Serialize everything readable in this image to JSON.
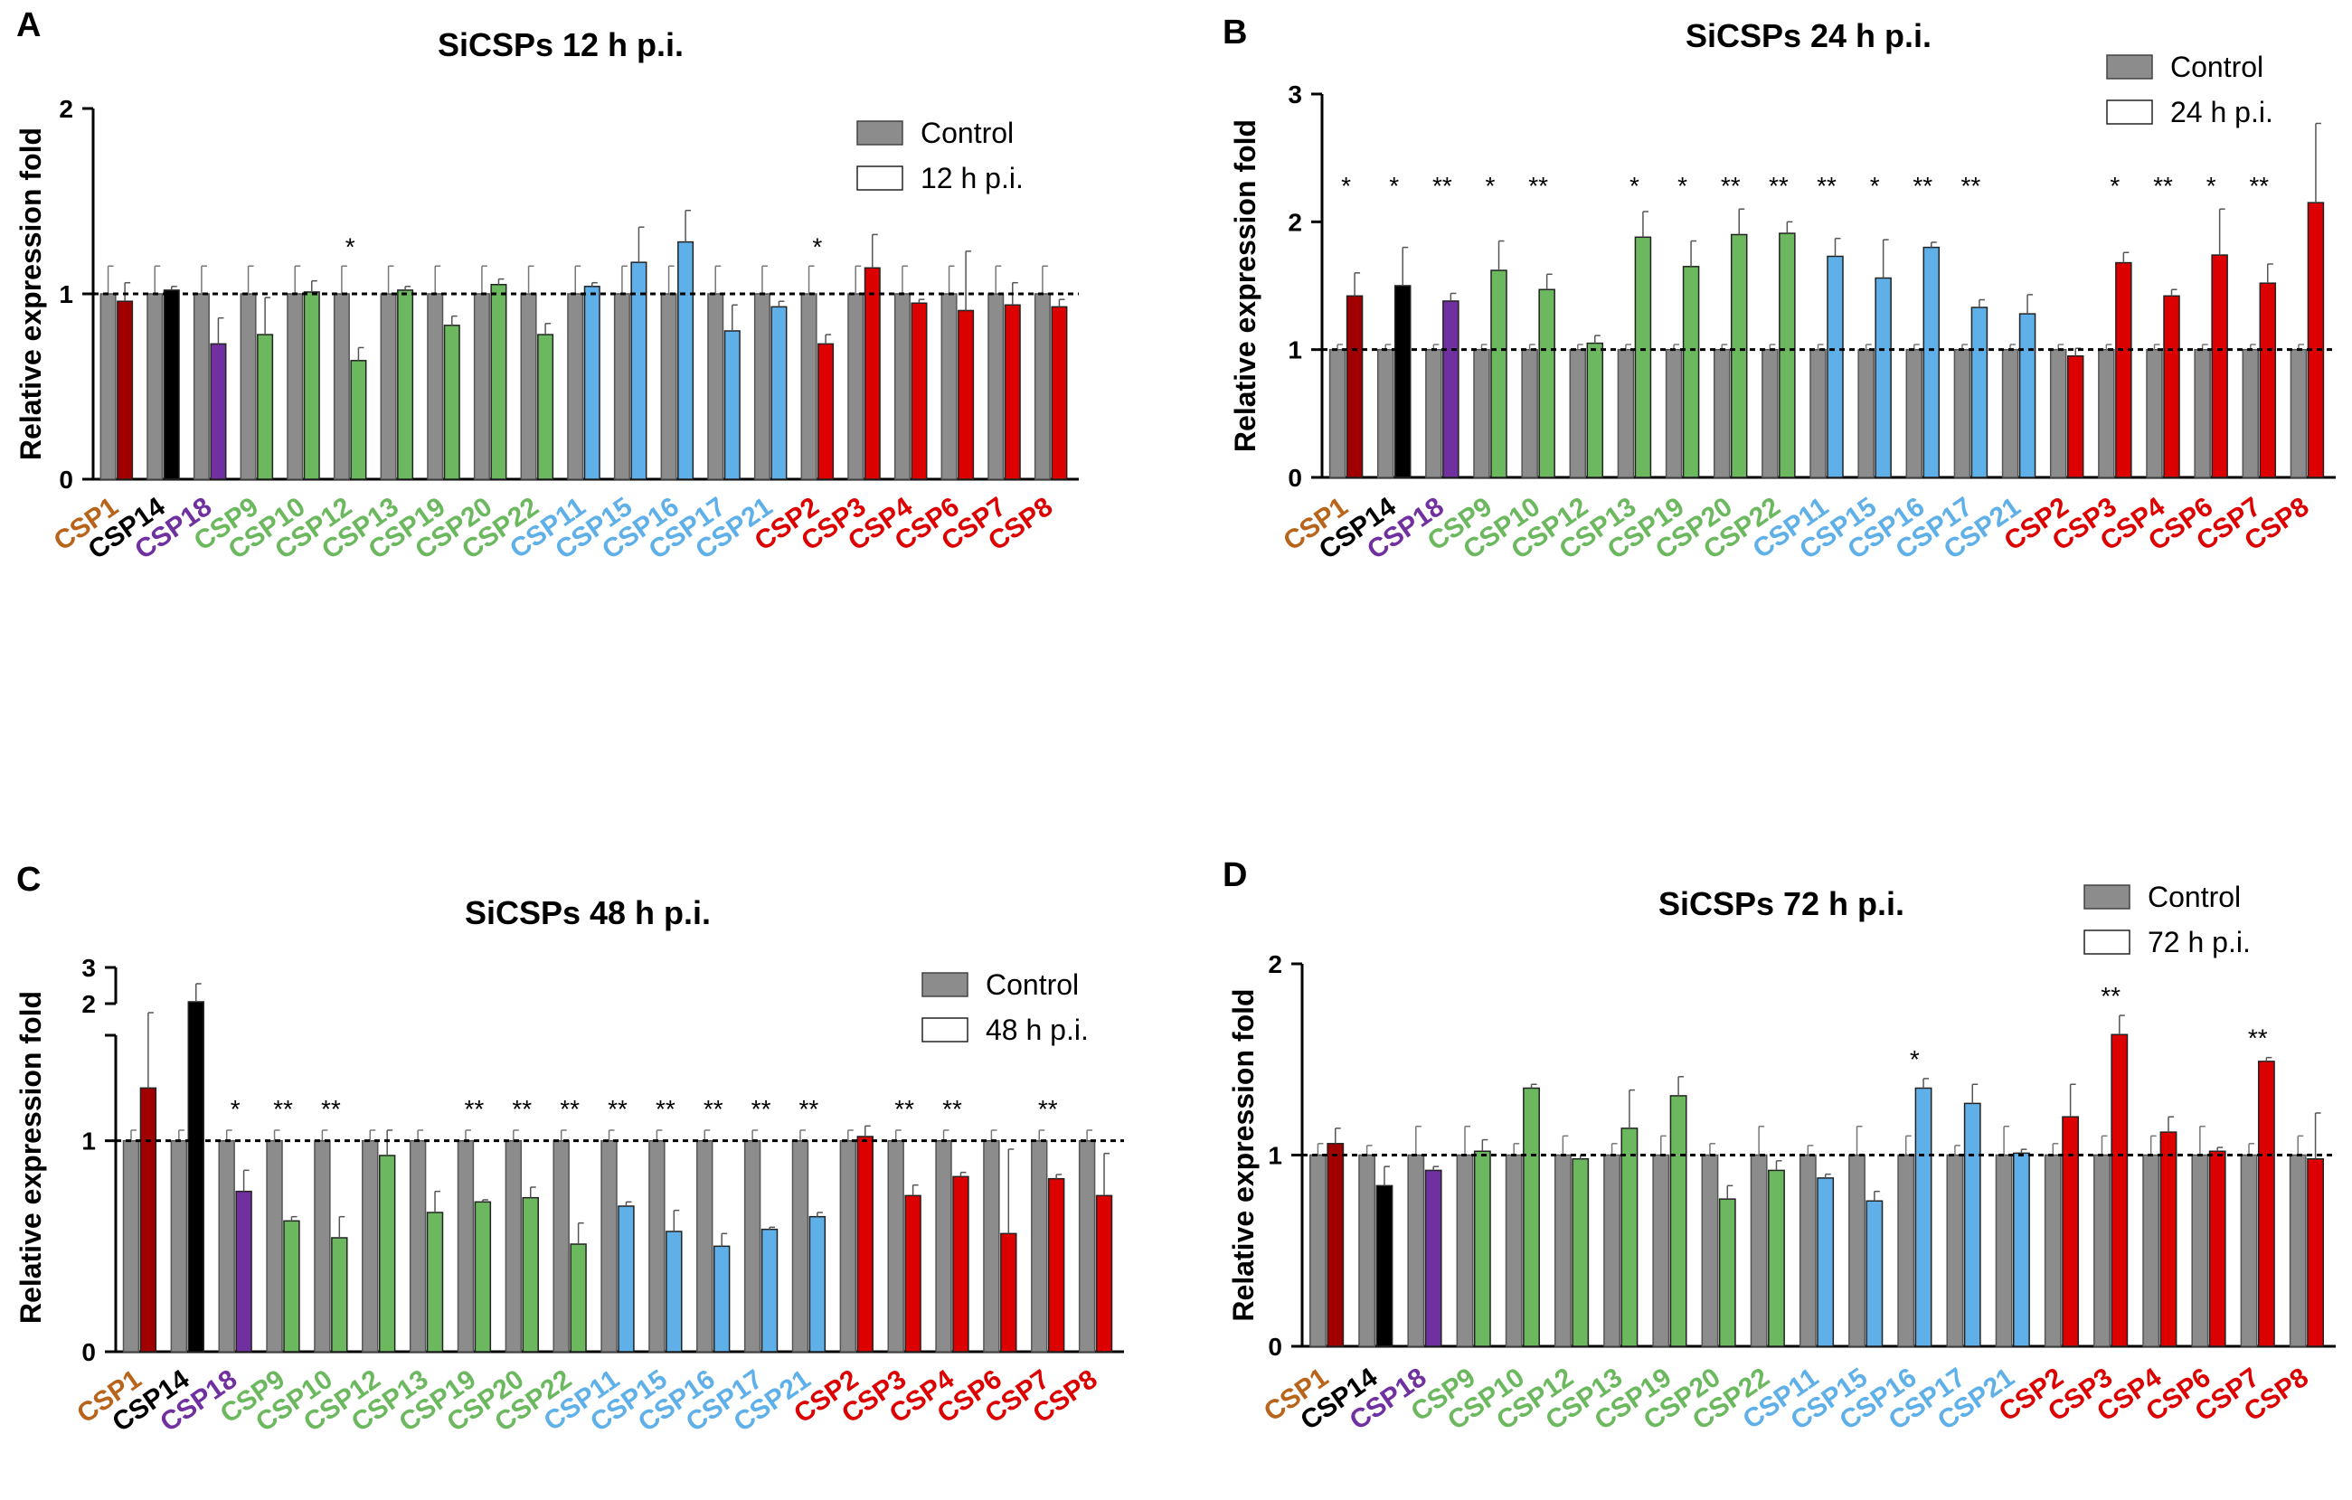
{
  "colors": {
    "control": "#8c8c8c",
    "orange": "#b8651b",
    "darkred": "#a00000",
    "black": "#000000",
    "purple": "#7030a0",
    "green": "#6cb85f",
    "blue": "#5fb0e8",
    "red": "#dd0000",
    "treated_empty": "#ffffff"
  },
  "chart_data": [
    {
      "panel": "A",
      "type": "bar",
      "title": "SiCSPs 12 h p.i.",
      "ylabel": "Relative expression fold",
      "ylim": [
        0,
        2
      ],
      "yticks": [
        "0",
        "1",
        "2"
      ],
      "reference_line": 1,
      "legend": [
        "Control",
        "12 h p.i."
      ],
      "legend_position": "top-right",
      "categories": [
        "CSP1",
        "CSP14",
        "CSP18",
        "CSP9",
        "CSP10",
        "CSP12",
        "CSP13",
        "CSP19",
        "CSP20",
        "CSP22",
        "CSP11",
        "CSP15",
        "CSP16",
        "CSP17",
        "CSP21",
        "CSP2",
        "CSP3",
        "CSP4",
        "CSP6",
        "CSP7",
        "CSP8"
      ],
      "category_colors": [
        "orange",
        "black",
        "purple",
        "green",
        "green",
        "green",
        "green",
        "green",
        "green",
        "green",
        "blue",
        "blue",
        "blue",
        "blue",
        "blue",
        "red",
        "red",
        "red",
        "red",
        "red",
        "red"
      ],
      "treated_colors": [
        "darkred",
        "black",
        "purple",
        "green",
        "green",
        "green",
        "green",
        "green",
        "green",
        "green",
        "blue",
        "blue",
        "blue",
        "blue",
        "blue",
        "red",
        "red",
        "red",
        "red",
        "red",
        "red"
      ],
      "treated_filled": [
        true,
        true,
        true,
        true,
        true,
        true,
        true,
        true,
        true,
        true,
        true,
        true,
        true,
        true,
        true,
        true,
        true,
        true,
        true,
        true,
        true
      ],
      "series": [
        {
          "name": "Control",
          "values": [
            1,
            1,
            1,
            1,
            1,
            1,
            1,
            1,
            1,
            1,
            1,
            1,
            1,
            1,
            1,
            1,
            1,
            1,
            1,
            1,
            1
          ],
          "errors": [
            0.15,
            0.15,
            0.15,
            0.15,
            0.15,
            0.15,
            0.15,
            0.15,
            0.15,
            0.15,
            0.15,
            0.15,
            0.15,
            0.15,
            0.15,
            0.15,
            0.15,
            0.15,
            0.15,
            0.15,
            0.15
          ]
        },
        {
          "name": "12 h p.i.",
          "values": [
            0.96,
            1.02,
            0.73,
            0.78,
            1.01,
            0.64,
            1.02,
            0.83,
            1.05,
            0.78,
            1.04,
            1.17,
            1.28,
            0.8,
            0.93,
            0.73,
            1.14,
            0.95,
            0.91,
            0.94,
            0.93
          ],
          "errors": [
            0.1,
            0.02,
            0.14,
            0.2,
            0.06,
            0.07,
            0.02,
            0.05,
            0.03,
            0.06,
            0.02,
            0.19,
            0.17,
            0.14,
            0.03,
            0.05,
            0.18,
            0.02,
            0.32,
            0.12,
            0.04
          ]
        }
      ],
      "significance": [
        "",
        "",
        "",
        "",
        "",
        "*",
        "",
        "",
        "",
        "",
        "",
        "",
        "",
        "",
        "",
        "*",
        "",
        "",
        "",
        "",
        ""
      ]
    },
    {
      "panel": "B",
      "type": "bar",
      "title": "SiCSPs 24 h p.i.",
      "ylabel": "Relative expression fold",
      "ylim": [
        0,
        3
      ],
      "yticks": [
        "0",
        "1",
        "2",
        "3"
      ],
      "reference_line": 1,
      "legend": [
        "Control",
        "24 h p.i."
      ],
      "legend_position": "top-right",
      "categories": [
        "CSP1",
        "CSP14",
        "CSP18",
        "CSP9",
        "CSP10",
        "CSP12",
        "CSP13",
        "CSP19",
        "CSP20",
        "CSP22",
        "CSP11",
        "CSP15",
        "CSP16",
        "CSP17",
        "CSP21",
        "CSP2",
        "CSP3",
        "CSP4",
        "CSP6",
        "CSP7",
        "CSP8"
      ],
      "category_colors": [
        "orange",
        "black",
        "purple",
        "green",
        "green",
        "green",
        "green",
        "green",
        "green",
        "green",
        "blue",
        "blue",
        "blue",
        "blue",
        "blue",
        "red",
        "red",
        "red",
        "red",
        "red",
        "red"
      ],
      "treated_colors": [
        "darkred",
        "black",
        "purple",
        "green",
        "green",
        "green",
        "green",
        "green",
        "green",
        "green",
        "blue",
        "blue",
        "blue",
        "blue",
        "blue",
        "red",
        "red",
        "red",
        "red",
        "red",
        "red"
      ],
      "treated_filled": [
        true,
        true,
        true,
        true,
        true,
        true,
        true,
        true,
        true,
        true,
        true,
        true,
        true,
        true,
        true,
        true,
        true,
        true,
        true,
        true,
        true
      ],
      "series": [
        {
          "name": "Control",
          "values": [
            1,
            1,
            1,
            1,
            1,
            1,
            1,
            1,
            1,
            1,
            1,
            1,
            1,
            1,
            1,
            1,
            1,
            1,
            1,
            1,
            1
          ],
          "errors": [
            0.04,
            0.04,
            0.04,
            0.04,
            0.04,
            0.04,
            0.04,
            0.04,
            0.04,
            0.04,
            0.04,
            0.04,
            0.04,
            0.04,
            0.04,
            0.04,
            0.04,
            0.04,
            0.04,
            0.04,
            0.04
          ]
        },
        {
          "name": "24 h p.i.",
          "values": [
            1.42,
            1.5,
            1.38,
            1.62,
            1.47,
            1.05,
            1.88,
            1.65,
            1.9,
            1.91,
            1.73,
            1.56,
            1.8,
            1.33,
            1.28,
            0.95,
            1.68,
            1.42,
            1.74,
            1.52,
            2.15
          ],
          "errors": [
            0.18,
            0.3,
            0.06,
            0.23,
            0.12,
            0.06,
            0.2,
            0.2,
            0.2,
            0.09,
            0.14,
            0.3,
            0.04,
            0.06,
            0.15,
            0.06,
            0.08,
            0.05,
            0.36,
            0.15,
            0.62
          ]
        }
      ],
      "significance": [
        "*",
        "*",
        "**",
        "*",
        "**",
        "",
        "*",
        "*",
        "**",
        "**",
        "**",
        "*",
        "**",
        "**",
        "",
        "",
        "*",
        "**",
        "*",
        "**",
        ""
      ]
    },
    {
      "panel": "C",
      "type": "bar",
      "title": "SiCSPs 48 h p.i.",
      "ylabel": "Relative expression fold",
      "ylim": [
        0,
        3
      ],
      "y_axis_break": [
        1.5,
        2
      ],
      "yticks": [
        "0",
        "1",
        "2",
        "3"
      ],
      "reference_line": 1,
      "legend": [
        "Control",
        "48 h p.i."
      ],
      "legend_position": "top-right",
      "categories": [
        "CSP1",
        "CSP14",
        "CSP18",
        "CSP9",
        "CSP10",
        "CSP12",
        "CSP13",
        "CSP19",
        "CSP20",
        "CSP22",
        "CSP11",
        "CSP15",
        "CSP16",
        "CSP17",
        "CSP21",
        "CSP2",
        "CSP3",
        "CSP4",
        "CSP6",
        "CSP7",
        "CSP8"
      ],
      "category_colors": [
        "orange",
        "black",
        "purple",
        "green",
        "green",
        "green",
        "green",
        "green",
        "green",
        "green",
        "blue",
        "blue",
        "blue",
        "blue",
        "blue",
        "red",
        "red",
        "red",
        "red",
        "red",
        "red"
      ],
      "treated_colors": [
        "darkred",
        "black",
        "purple",
        "green",
        "green",
        "green",
        "green",
        "green",
        "green",
        "green",
        "blue",
        "blue",
        "blue",
        "blue",
        "blue",
        "red",
        "red",
        "red",
        "red",
        "red",
        "red"
      ],
      "treated_filled": [
        true,
        true,
        true,
        true,
        true,
        true,
        true,
        true,
        true,
        true,
        true,
        true,
        true,
        true,
        true,
        true,
        true,
        true,
        true,
        true,
        true
      ],
      "series": [
        {
          "name": "Control",
          "values": [
            1,
            1,
            1,
            1,
            1,
            1,
            1,
            1,
            1,
            1,
            1,
            1,
            1,
            1,
            1,
            1,
            1,
            1,
            1,
            1,
            1
          ],
          "errors": [
            0.05,
            0.05,
            0.05,
            0.05,
            0.05,
            0.05,
            0.05,
            0.05,
            0.05,
            0.05,
            0.05,
            0.05,
            0.05,
            0.05,
            0.05,
            0.05,
            0.05,
            0.05,
            0.05,
            0.05,
            0.05
          ]
        },
        {
          "name": "48 h p.i.",
          "values": [
            1.25,
            2.05,
            0.76,
            0.62,
            0.54,
            0.93,
            0.66,
            0.71,
            0.73,
            0.51,
            0.69,
            0.57,
            0.5,
            0.58,
            0.64,
            1.02,
            0.74,
            0.83,
            0.56,
            0.82,
            0.74
          ],
          "errors": [
            0.5,
            0.5,
            0.1,
            0.02,
            0.1,
            0.12,
            0.1,
            0.01,
            0.05,
            0.1,
            0.02,
            0.1,
            0.06,
            0.01,
            0.02,
            0.05,
            0.05,
            0.02,
            0.4,
            0.02,
            0.2
          ]
        }
      ],
      "significance": [
        "",
        "",
        "*",
        "**",
        "**",
        "",
        "",
        "**",
        "**",
        "**",
        "**",
        "**",
        "**",
        "**",
        "**",
        "",
        "**",
        "**",
        "",
        "**",
        ""
      ]
    },
    {
      "panel": "D",
      "type": "bar",
      "title": "SiCSPs 72 h p.i.",
      "ylabel": "Relative expression fold",
      "ylim": [
        0,
        2
      ],
      "yticks": [
        "0",
        "1",
        "2"
      ],
      "reference_line": 1,
      "legend": [
        "Control",
        "72 h p.i."
      ],
      "legend_position": "top-right",
      "categories": [
        "CSP1",
        "CSP14",
        "CSP18",
        "CSP9",
        "CSP10",
        "CSP12",
        "CSP13",
        "CSP19",
        "CSP20",
        "CSP22",
        "CSP11",
        "CSP15",
        "CSP16",
        "CSP17",
        "CSP21",
        "CSP2",
        "CSP3",
        "CSP4",
        "CSP6",
        "CSP7",
        "CSP8"
      ],
      "category_colors": [
        "orange",
        "black",
        "purple",
        "green",
        "green",
        "green",
        "green",
        "green",
        "green",
        "green",
        "blue",
        "blue",
        "blue",
        "blue",
        "blue",
        "red",
        "red",
        "red",
        "red",
        "red",
        "red"
      ],
      "treated_colors": [
        "darkred",
        "black",
        "purple",
        "green",
        "green",
        "green",
        "green",
        "green",
        "green",
        "green",
        "blue",
        "blue",
        "blue",
        "blue",
        "blue",
        "red",
        "red",
        "red",
        "red",
        "red",
        "red"
      ],
      "treated_filled": [
        true,
        true,
        true,
        true,
        true,
        true,
        true,
        true,
        true,
        true,
        true,
        true,
        true,
        true,
        true,
        true,
        true,
        true,
        true,
        true,
        true
      ],
      "series": [
        {
          "name": "Control",
          "values": [
            1,
            1,
            1,
            1,
            1,
            1,
            1,
            1,
            1,
            1,
            1,
            1,
            1,
            1,
            1,
            1,
            1,
            1,
            1,
            1,
            1
          ],
          "errors": [
            0.06,
            0.05,
            0.15,
            0.15,
            0.06,
            0.1,
            0.06,
            0.1,
            0.06,
            0.15,
            0.05,
            0.15,
            0.1,
            0.05,
            0.15,
            0.06,
            0.1,
            0.1,
            0.15,
            0.06,
            0.1
          ]
        },
        {
          "name": "72 h p.i.",
          "values": [
            1.06,
            0.84,
            0.92,
            1.02,
            1.35,
            0.98,
            1.14,
            1.31,
            0.77,
            0.92,
            0.88,
            0.76,
            1.35,
            1.27,
            1.01,
            1.2,
            1.63,
            1.12,
            1.02,
            1.49,
            0.98
          ],
          "errors": [
            0.08,
            0.1,
            0.02,
            0.06,
            0.02,
            0.02,
            0.2,
            0.1,
            0.07,
            0.05,
            0.02,
            0.05,
            0.05,
            0.1,
            0.02,
            0.17,
            0.1,
            0.08,
            0.02,
            0.02,
            0.24
          ]
        }
      ],
      "significance": [
        "",
        "",
        "",
        "",
        "",
        "",
        "",
        "",
        "",
        "",
        "",
        "",
        "*",
        "",
        "",
        "",
        "**",
        "",
        "",
        "**",
        ""
      ]
    }
  ]
}
